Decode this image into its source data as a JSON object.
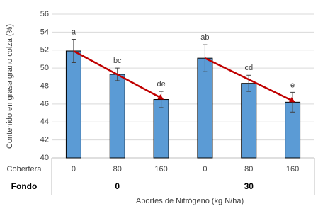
{
  "chart_data": {
    "type": "bar",
    "y_label": "Contenido en grasa grano colza (%)",
    "x_label": "Aportes de Nitrógeno (kg N/ha)",
    "categories": [
      "0",
      "80",
      "160",
      "0",
      "80",
      "160"
    ],
    "values": [
      51.9,
      49.3,
      46.5,
      51.1,
      48.3,
      46.2
    ],
    "errors": [
      1.3,
      0.7,
      0.9,
      1.5,
      0.9,
      1.1
    ],
    "letters": [
      "a",
      "bc",
      "de",
      "ab",
      "cd",
      "e"
    ],
    "row_label": "Cobertera",
    "group_row_label": "Fondo",
    "groups": [
      "0",
      "30"
    ],
    "color": "#5b9bd5",
    "arrow_color": "#c00000",
    "ylim": [
      40,
      56
    ],
    "yticks": [
      40,
      42,
      44,
      46,
      48,
      50,
      52,
      54,
      56
    ],
    "grid": true
  }
}
